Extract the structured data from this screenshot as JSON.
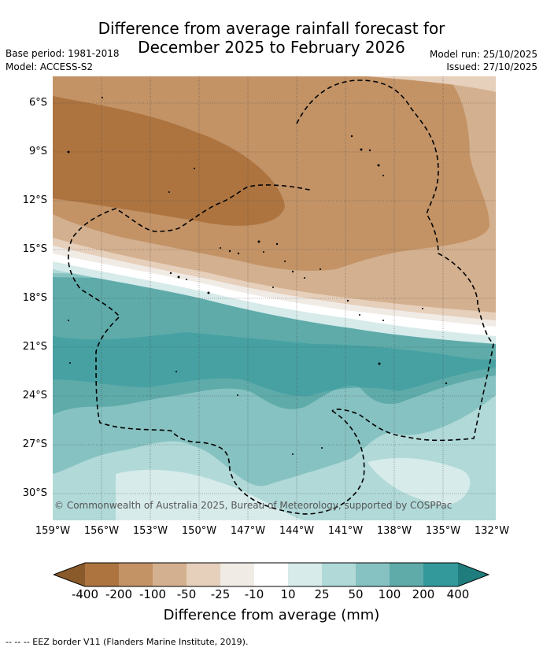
{
  "header": {
    "title_line1": "Difference from average rainfall forecast for",
    "title_line2": "December 2025 to February 2026",
    "base_period": "Base period: 1981-2018",
    "model": "Model: ACCESS-S2",
    "model_run": "Model run: 25/10/2025",
    "issued": "Issued: 27/10/2025"
  },
  "map": {
    "lat_labels": [
      "6°S",
      "9°S",
      "12°S",
      "15°S",
      "18°S",
      "21°S",
      "24°S",
      "27°S",
      "30°S"
    ],
    "lon_labels": [
      "159°W",
      "156°W",
      "153°W",
      "150°W",
      "147°W",
      "144°W",
      "141°W",
      "138°W",
      "135°W",
      "132°W"
    ],
    "copyright": "© Commonwealth of Australia 2025, Bureau of Meteorology, supported by COSPPac"
  },
  "colorbar": {
    "labels": [
      "-400",
      "-200",
      "-100",
      "-50",
      "-25",
      "-10",
      "10",
      "25",
      "50",
      "100",
      "200",
      "400"
    ],
    "colors": [
      "#8a5a2b",
      "#ad7440",
      "#c39366",
      "#d3b08f",
      "#e6cfbb",
      "#f1ebe6",
      "#ffffff",
      "#d6ebea",
      "#b0d9d8",
      "#86c2c1",
      "#5eabaa",
      "#34999a",
      "#1f7d7d"
    ],
    "title": "Difference from average (mm)"
  },
  "footnote": "-- -- -- EEZ border V11 (Flanders Marine Institute, 2019)."
}
